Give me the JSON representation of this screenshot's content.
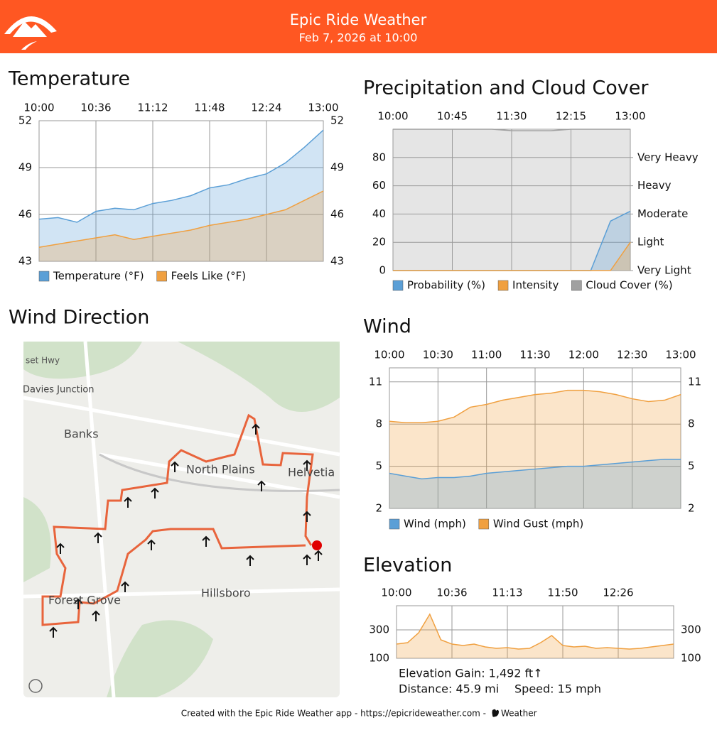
{
  "header": {
    "title": "Epic Ride Weather",
    "subtitle": "Feb 7, 2026 at 10:00"
  },
  "chart_data": [
    {
      "type": "area",
      "title": "Temperature",
      "categories": [
        "10:00",
        null,
        null,
        "10:36",
        null,
        null,
        "11:12",
        null,
        null,
        "11:48",
        null,
        null,
        "12:24",
        null,
        null,
        "13:00"
      ],
      "series": [
        {
          "name": "Temperature (°F)",
          "color": "#5b9fd6",
          "values": [
            45.7,
            45.8,
            45.5,
            46.2,
            46.4,
            46.3,
            46.7,
            46.9,
            47.2,
            47.7,
            47.9,
            48.3,
            48.6,
            49.3,
            50.3,
            51.4
          ]
        },
        {
          "name": "Feels Like (°F)",
          "color": "#f0a040",
          "values": [
            43.9,
            44.1,
            44.3,
            44.5,
            44.7,
            44.4,
            44.6,
            44.8,
            45.0,
            45.3,
            45.5,
            45.7,
            46.0,
            46.3,
            46.9,
            47.5
          ]
        }
      ],
      "ylim": [
        43,
        52
      ],
      "yticks": [
        43,
        46,
        49,
        52
      ],
      "grid": true
    },
    {
      "type": "area",
      "title": "Precipitation and Cloud Cover",
      "categories": [
        "10:00",
        null,
        null,
        "10:45",
        null,
        null,
        "11:30",
        null,
        null,
        "12:15",
        null,
        null,
        "13:00"
      ],
      "series": [
        {
          "name": "Probability (%)",
          "color": "#5b9fd6",
          "values": [
            0,
            0,
            0,
            0,
            0,
            0,
            0,
            0,
            0,
            0,
            0,
            35,
            42
          ]
        },
        {
          "name": "Intensity",
          "color": "#f0a040",
          "values": [
            0,
            0,
            0,
            0,
            0,
            0,
            0,
            0,
            0,
            0,
            0,
            0,
            20
          ]
        },
        {
          "name": "Cloud Cover (%)",
          "color": "#a0a0a0",
          "values": [
            100,
            100,
            100,
            100,
            100,
            100,
            99,
            99,
            99,
            100,
            100,
            100,
            100
          ]
        }
      ],
      "ylim": [
        0,
        100
      ],
      "yticks": [
        0,
        20,
        40,
        60,
        80
      ],
      "y2lim": [
        0,
        100
      ],
      "y2ticks": [
        {
          "value": 0,
          "label": "Very Light"
        },
        {
          "value": 20,
          "label": "Light"
        },
        {
          "value": 40,
          "label": "Moderate"
        },
        {
          "value": 60,
          "label": "Heavy"
        },
        {
          "value": 80,
          "label": "Very Heavy"
        }
      ],
      "grid": true
    },
    {
      "type": "area",
      "title": "Wind",
      "categories": [
        "10:00",
        null,
        null,
        "10:30",
        null,
        null,
        "11:00",
        null,
        null,
        "11:30",
        null,
        null,
        "12:00",
        null,
        null,
        "12:30",
        null,
        null,
        "13:00"
      ],
      "series": [
        {
          "name": "Wind (mph)",
          "color": "#5b9fd6",
          "values": [
            4.5,
            4.3,
            4.1,
            4.2,
            4.2,
            4.3,
            4.5,
            4.6,
            4.7,
            4.8,
            4.9,
            5.0,
            5.0,
            5.1,
            5.2,
            5.3,
            5.4,
            5.5,
            5.5
          ]
        },
        {
          "name": "Wind Gust (mph)",
          "color": "#f0a040",
          "values": [
            8.2,
            8.1,
            8.1,
            8.2,
            8.5,
            9.2,
            9.4,
            9.7,
            9.9,
            10.1,
            10.2,
            10.4,
            10.4,
            10.3,
            10.1,
            9.8,
            9.6,
            9.7,
            10.1
          ]
        }
      ],
      "ylim": [
        2,
        12
      ],
      "yticks": [
        2,
        5,
        8,
        11
      ],
      "grid": true
    },
    {
      "type": "area",
      "title": "Elevation",
      "categories": [
        "10:00",
        null,
        null,
        null,
        null,
        "10:36",
        null,
        null,
        null,
        null,
        "11:13",
        null,
        null,
        null,
        null,
        "11:50",
        null,
        null,
        null,
        null,
        "12:26",
        null,
        null,
        null,
        null,
        null
      ],
      "series": [
        {
          "name": "Elevation",
          "color": "#f0a040",
          "values": [
            200,
            210,
            280,
            410,
            230,
            200,
            190,
            200,
            180,
            170,
            175,
            165,
            170,
            210,
            260,
            190,
            180,
            185,
            170,
            175,
            170,
            165,
            170,
            180,
            190,
            200
          ]
        }
      ],
      "ylim": [
        100,
        470
      ],
      "yticks": [
        100,
        300
      ],
      "grid": true
    }
  ],
  "stats": {
    "gain": "Elevation Gain: 1,492 ft↑",
    "distance": "Distance: 45.9 mi",
    "speed": "Speed: 15 mph"
  },
  "map": {
    "title": "Wind Direction",
    "labels": [
      "set Hwy",
      "Davies Junction",
      "Banks",
      "North Plains",
      "Helvetia",
      "Forest Grove",
      "Hillsboro"
    ]
  },
  "footer": {
    "text": "Created with the Epic Ride Weather app - https://epicrideweather.com -",
    "brand": "Weather"
  }
}
